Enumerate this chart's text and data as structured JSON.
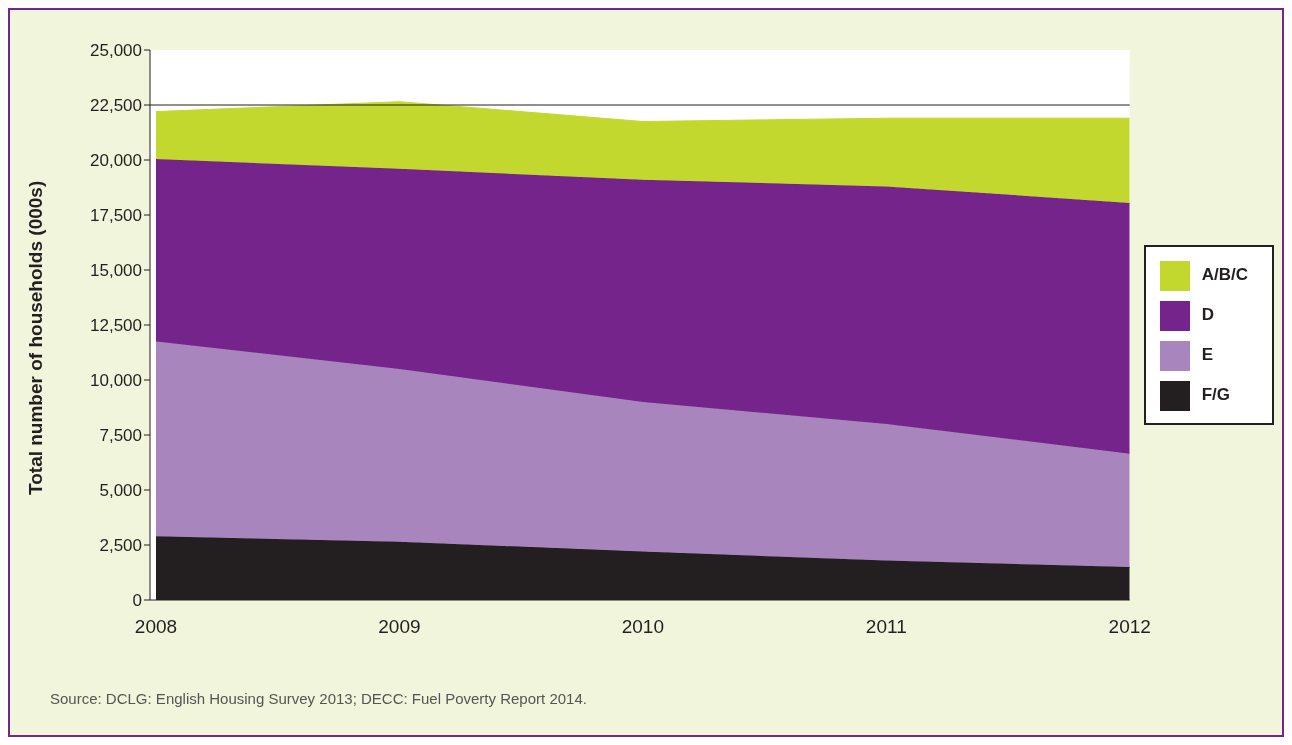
{
  "chart_data": {
    "type": "area",
    "stacked": true,
    "ylabel": "Total number of households (000s)",
    "x": [
      2008,
      2009,
      2010,
      2011,
      2012
    ],
    "xlim": [
      2008,
      2012
    ],
    "xticks": [
      {
        "value": 2008,
        "label": "2008"
      },
      {
        "value": 2009,
        "label": "2009"
      },
      {
        "value": 2010,
        "label": "2010"
      },
      {
        "value": 2011,
        "label": "2011"
      },
      {
        "value": 2012,
        "label": "2012"
      }
    ],
    "ylim": [
      0,
      25000
    ],
    "yticks": [
      {
        "value": 0,
        "label": "0"
      },
      {
        "value": 2500,
        "label": "2,500"
      },
      {
        "value": 5000,
        "label": "5,000"
      },
      {
        "value": 7500,
        "label": "7,500"
      },
      {
        "value": 10000,
        "label": "10,000"
      },
      {
        "value": 12500,
        "label": "12,500"
      },
      {
        "value": 15000,
        "label": "15,000"
      },
      {
        "value": 17500,
        "label": "17,500"
      },
      {
        "value": 20000,
        "label": "20,000"
      },
      {
        "value": 22500,
        "label": "22,500"
      },
      {
        "value": 25000,
        "label": "25,000"
      }
    ],
    "series": [
      {
        "name": "F/G",
        "color": "#231f20",
        "values": [
          2900,
          2650,
          2200,
          1800,
          1500
        ]
      },
      {
        "name": "E",
        "color": "#a886bd",
        "values": [
          8850,
          7850,
          6800,
          6200,
          5150
        ]
      },
      {
        "name": "D",
        "color": "#74248a",
        "values": [
          8300,
          9100,
          10100,
          10800,
          11400
        ]
      },
      {
        "name": "A/B/C",
        "color": "#c3d82e",
        "values": [
          2150,
          3050,
          2650,
          3100,
          3850
        ]
      }
    ],
    "ref_lines": [
      {
        "axis": "y",
        "value": 22500,
        "color": "#231f20"
      }
    ],
    "legend": "right",
    "grid": false,
    "annotations": [
      "Source: DCLG: English Housing Survey 2013; DECC: Fuel Poverty Report 2014."
    ]
  }
}
